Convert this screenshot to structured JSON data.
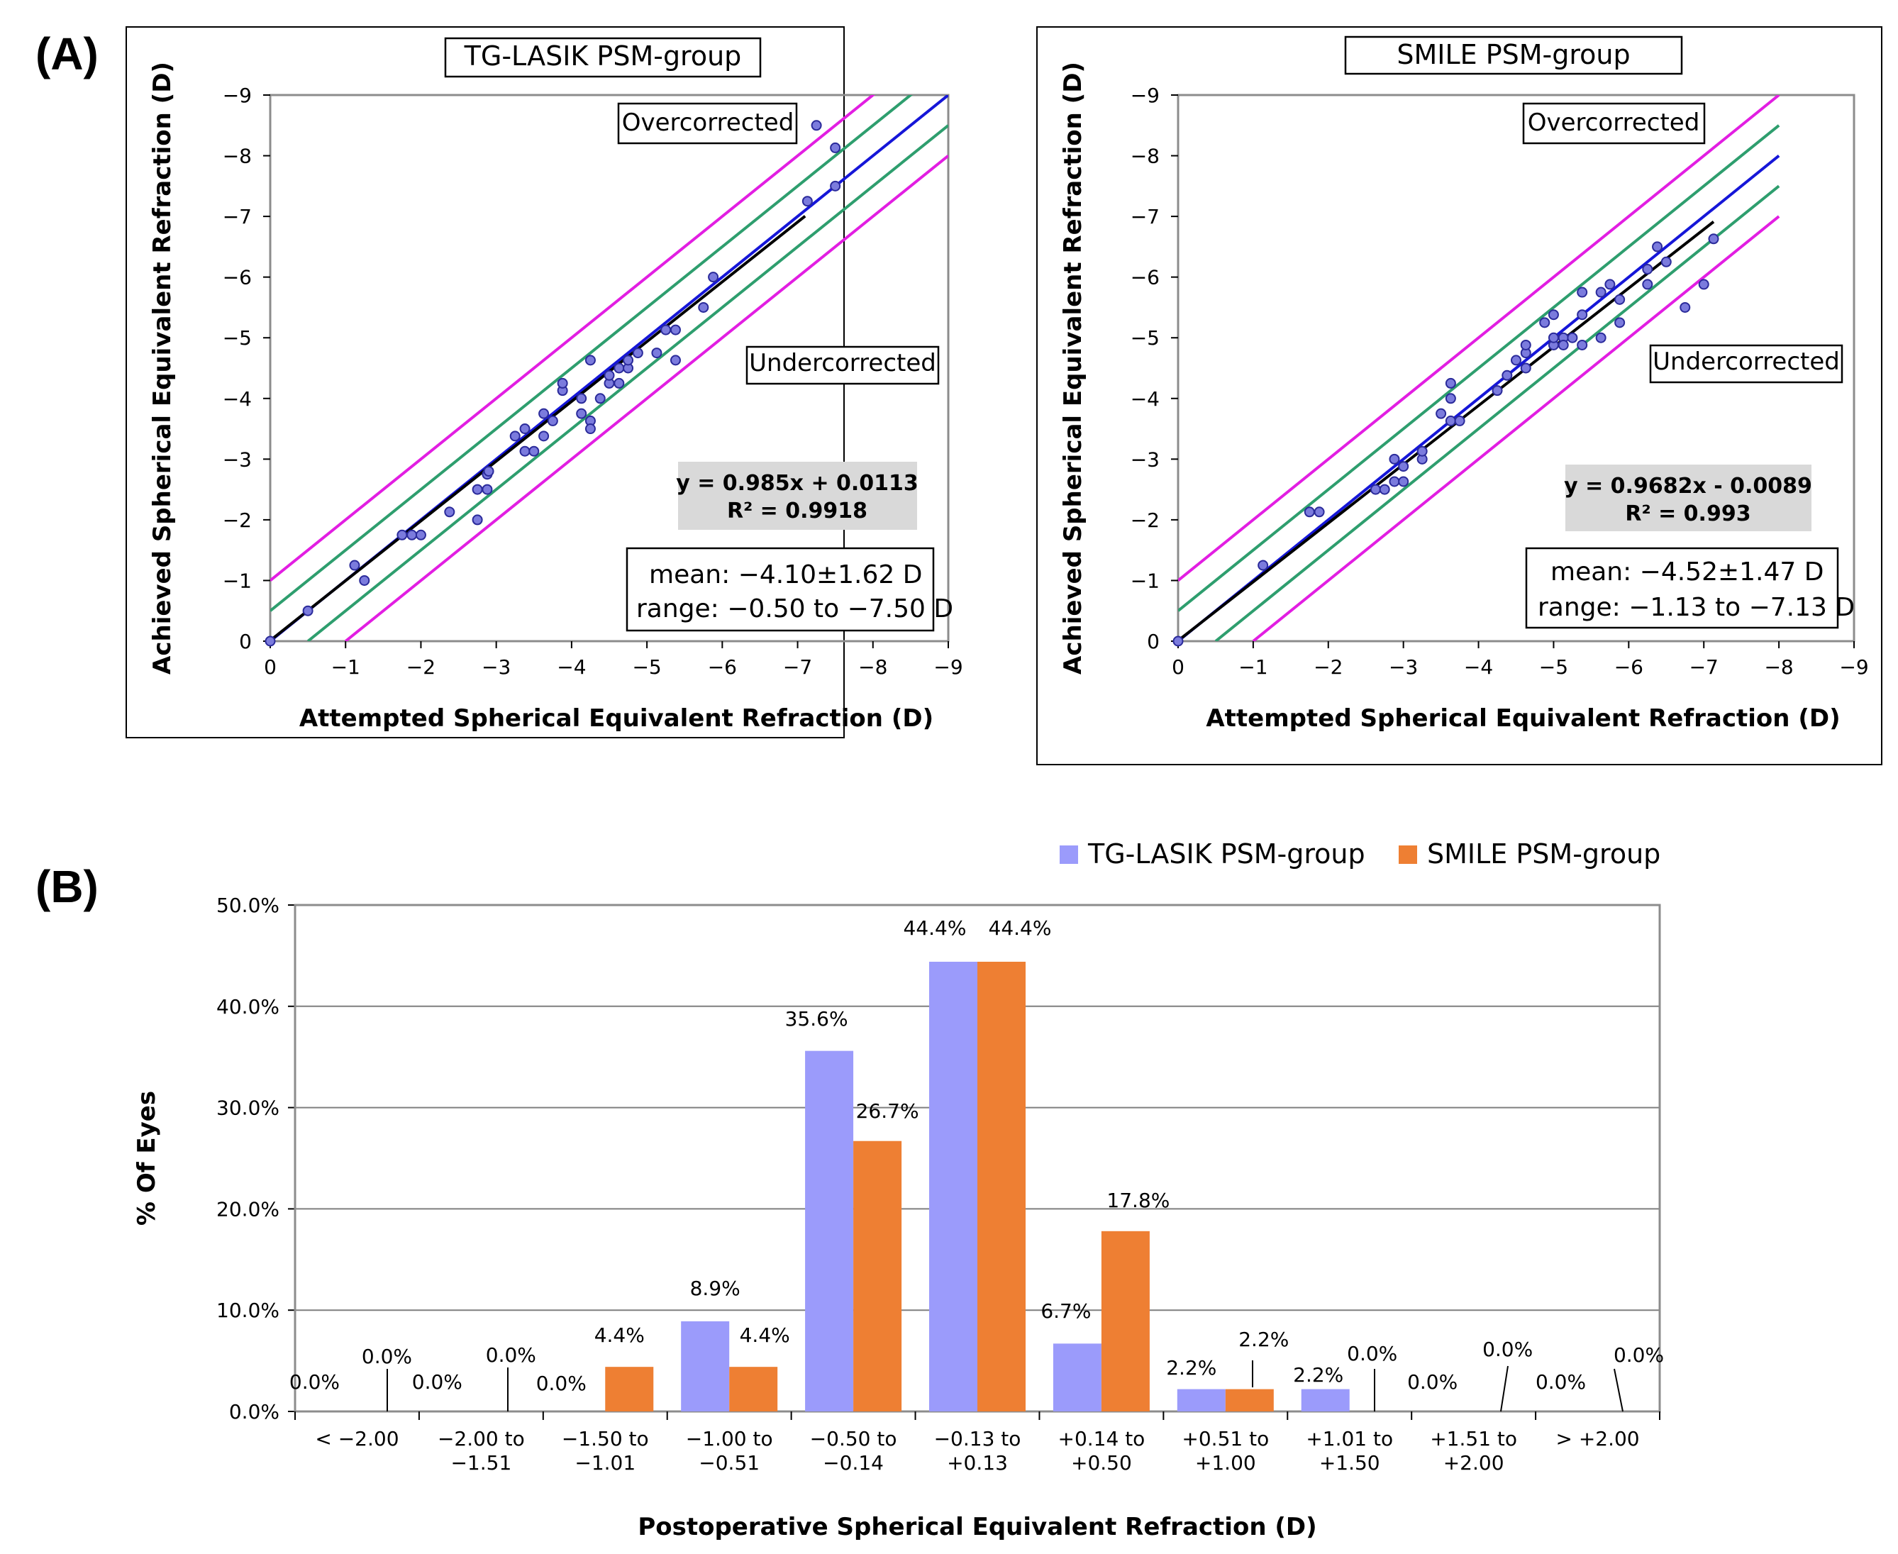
{
  "panel_a_label": "(A)",
  "panel_b_label": "(B)",
  "colors": {
    "perfect_line": "#1616d8",
    "fit_line": "#000000",
    "band_05": "#2e9e6e",
    "band_10": "#e21ee2",
    "points": "#4848c8",
    "tg_lasik_bar": "#9b9bfb",
    "smile_bar": "#ee7f33",
    "stats_box_bg": "#d9d9d9"
  },
  "chart_data": [
    {
      "type": "scatter",
      "title": "TG-LASIK PSM-group",
      "xlabel": "Attempted Spherical Equivalent Refraction (D)",
      "ylabel": "Achieved Spherical Equivalent Refraction (D)",
      "xlim": [
        0,
        -9
      ],
      "ylim": [
        0,
        -9
      ],
      "x_ticks": [
        "0",
        "−1",
        "−2",
        "−3",
        "−4",
        "−5",
        "−6",
        "−7",
        "−8",
        "−9"
      ],
      "y_ticks": [
        "0",
        "−1",
        "−2",
        "−3",
        "−4",
        "−5",
        "−6",
        "−7",
        "−8",
        "−9"
      ],
      "region_labels": {
        "over": "Overcorrected",
        "under": "Undercorrected"
      },
      "reference_lines": {
        "perfect": "y = x",
        "inner_band": 0.5,
        "outer_band": 1.0
      },
      "regression": {
        "equation": "y = 0.985x + 0.0113",
        "r2": "R² = 0.9918",
        "slope": 0.985,
        "intercept": 0.0113,
        "x_range": [
          0,
          -7.1
        ]
      },
      "stats": {
        "mean": "mean: −4.10±1.62 D",
        "range": "range: −0.50 to −7.50 D"
      },
      "points": [
        [
          0,
          0
        ],
        [
          -0.5,
          -0.5
        ],
        [
          -1.12,
          -1.25
        ],
        [
          -1.25,
          -1.0
        ],
        [
          -1.75,
          -1.75
        ],
        [
          -1.88,
          -1.75
        ],
        [
          -2.0,
          -1.75
        ],
        [
          -2.38,
          -2.13
        ],
        [
          -2.75,
          -2.5
        ],
        [
          -2.88,
          -2.5
        ],
        [
          -2.88,
          -2.75
        ],
        [
          -2.75,
          -2.0
        ],
        [
          -2.9,
          -2.8
        ],
        [
          -3.25,
          -3.38
        ],
        [
          -3.38,
          -3.5
        ],
        [
          -3.38,
          -3.13
        ],
        [
          -3.5,
          -3.13
        ],
        [
          -3.63,
          -3.38
        ],
        [
          -3.63,
          -3.75
        ],
        [
          -3.75,
          -3.63
        ],
        [
          -3.88,
          -4.13
        ],
        [
          -3.88,
          -4.25
        ],
        [
          -4.13,
          -3.75
        ],
        [
          -4.13,
          -4.0
        ],
        [
          -4.25,
          -3.63
        ],
        [
          -4.25,
          -3.5
        ],
        [
          -4.25,
          -4.63
        ],
        [
          -4.38,
          -4.0
        ],
        [
          -4.5,
          -4.25
        ],
        [
          -4.5,
          -4.38
        ],
        [
          -4.63,
          -4.5
        ],
        [
          -4.63,
          -4.25
        ],
        [
          -4.75,
          -4.5
        ],
        [
          -4.75,
          -4.63
        ],
        [
          -4.88,
          -4.75
        ],
        [
          -5.13,
          -4.75
        ],
        [
          -5.25,
          -5.13
        ],
        [
          -5.38,
          -5.13
        ],
        [
          -5.38,
          -4.63
        ],
        [
          -5.75,
          -5.5
        ],
        [
          -5.88,
          -6.0
        ],
        [
          -7.13,
          -7.25
        ],
        [
          -7.25,
          -8.5
        ],
        [
          -7.5,
          -7.5
        ],
        [
          -7.5,
          -8.13
        ]
      ]
    },
    {
      "type": "scatter",
      "title": "SMILE PSM-group",
      "xlabel": "Attempted Spherical Equivalent Refraction (D)",
      "ylabel": "Achieved Spherical Equivalent Refraction (D)",
      "xlim": [
        0,
        -9
      ],
      "ylim": [
        0,
        -9
      ],
      "x_ticks": [
        "0",
        "−1",
        "−2",
        "−3",
        "−4",
        "−5",
        "−6",
        "−7",
        "−8",
        "−9"
      ],
      "y_ticks": [
        "0",
        "−1",
        "−2",
        "−3",
        "−4",
        "−5",
        "−6",
        "−7",
        "−8",
        "−9"
      ],
      "region_labels": {
        "over": "Overcorrected",
        "under": "Undercorrected"
      },
      "reference_lines": {
        "perfect": "y = x",
        "inner_band": 0.5,
        "outer_band": 1.0,
        "x_max": -8
      },
      "regression": {
        "equation": "y = 0.9682x - 0.0089",
        "r2": "R² = 0.993",
        "slope": 0.9682,
        "intercept": -0.0089,
        "x_range": [
          0,
          -7.13
        ]
      },
      "stats": {
        "mean": "mean: −4.52±1.47 D",
        "range": "range: −1.13 to −7.13 D"
      },
      "points": [
        [
          0,
          0
        ],
        [
          -1.13,
          -1.25
        ],
        [
          -1.75,
          -2.13
        ],
        [
          -1.88,
          -2.13
        ],
        [
          -2.63,
          -2.5
        ],
        [
          -2.75,
          -2.5
        ],
        [
          -2.88,
          -2.63
        ],
        [
          -2.88,
          -3.0
        ],
        [
          -3.0,
          -2.63
        ],
        [
          -3.0,
          -2.88
        ],
        [
          -3.25,
          -3.0
        ],
        [
          -3.25,
          -3.13
        ],
        [
          -3.5,
          -3.75
        ],
        [
          -3.63,
          -4.0
        ],
        [
          -3.63,
          -4.25
        ],
        [
          -3.63,
          -3.63
        ],
        [
          -3.75,
          -3.63
        ],
        [
          -4.25,
          -4.13
        ],
        [
          -4.38,
          -4.38
        ],
        [
          -4.5,
          -4.63
        ],
        [
          -4.63,
          -4.5
        ],
        [
          -4.63,
          -4.75
        ],
        [
          -4.63,
          -4.88
        ],
        [
          -4.88,
          -5.25
        ],
        [
          -5.0,
          -4.88
        ],
        [
          -5.0,
          -5.0
        ],
        [
          -5.0,
          -5.38
        ],
        [
          -5.13,
          -5.0
        ],
        [
          -5.13,
          -4.88
        ],
        [
          -5.25,
          -5.0
        ],
        [
          -5.38,
          -5.75
        ],
        [
          -5.38,
          -5.38
        ],
        [
          -5.38,
          -4.88
        ],
        [
          -5.63,
          -5.75
        ],
        [
          -5.63,
          -5.0
        ],
        [
          -5.75,
          -5.88
        ],
        [
          -5.88,
          -5.63
        ],
        [
          -5.88,
          -5.25
        ],
        [
          -6.25,
          -5.88
        ],
        [
          -6.25,
          -6.13
        ],
        [
          -6.38,
          -6.5
        ],
        [
          -6.5,
          -6.25
        ],
        [
          -6.75,
          -5.5
        ],
        [
          -7.0,
          -5.88
        ],
        [
          -7.13,
          -6.63
        ]
      ]
    },
    {
      "type": "bar",
      "title": "",
      "xlabel": "Postoperative Spherical Equivalent Refraction (D)",
      "ylabel": "% Of Eyes",
      "ylim": [
        0,
        50
      ],
      "y_ticks": [
        "0.0%",
        "10.0%",
        "20.0%",
        "30.0%",
        "40.0%",
        "50.0%"
      ],
      "grid": true,
      "legend": "top-right",
      "categories": [
        [
          "< −2.00"
        ],
        [
          "−2.00 to",
          "−1.51"
        ],
        [
          "−1.50 to",
          "−1.01"
        ],
        [
          "−1.00 to",
          "−0.51"
        ],
        [
          "−0.50 to",
          "−0.14"
        ],
        [
          "−0.13 to",
          "+0.13"
        ],
        [
          "+0.14 to",
          "+0.50"
        ],
        [
          "+0.51 to",
          "+1.00"
        ],
        [
          "+1.01 to",
          "+1.50"
        ],
        [
          "+1.51 to",
          "+2.00"
        ],
        [
          "> +2.00"
        ]
      ],
      "series": [
        {
          "name": "TG-LASIK PSM-group",
          "values": [
            0.0,
            0.0,
            0.0,
            8.9,
            35.6,
            44.4,
            6.7,
            2.2,
            2.2,
            0.0,
            0.0
          ],
          "labels": [
            "0.0%",
            "0.0%",
            "0.0%",
            "8.9%",
            "35.6%",
            "44.4%",
            "6.7%",
            "2.2%",
            "2.2%",
            "0.0%",
            "0.0%"
          ]
        },
        {
          "name": "SMILE PSM-group",
          "values": [
            0.0,
            0.0,
            4.4,
            4.4,
            26.7,
            44.4,
            17.8,
            2.2,
            0.0,
            0.0,
            0.0
          ],
          "labels": [
            "0.0%",
            "0.0%",
            "4.4%",
            "4.4%",
            "26.7%",
            "44.4%",
            "17.8%",
            "2.2%",
            "0.0%",
            "0.0%",
            "0.0%"
          ]
        }
      ]
    }
  ]
}
